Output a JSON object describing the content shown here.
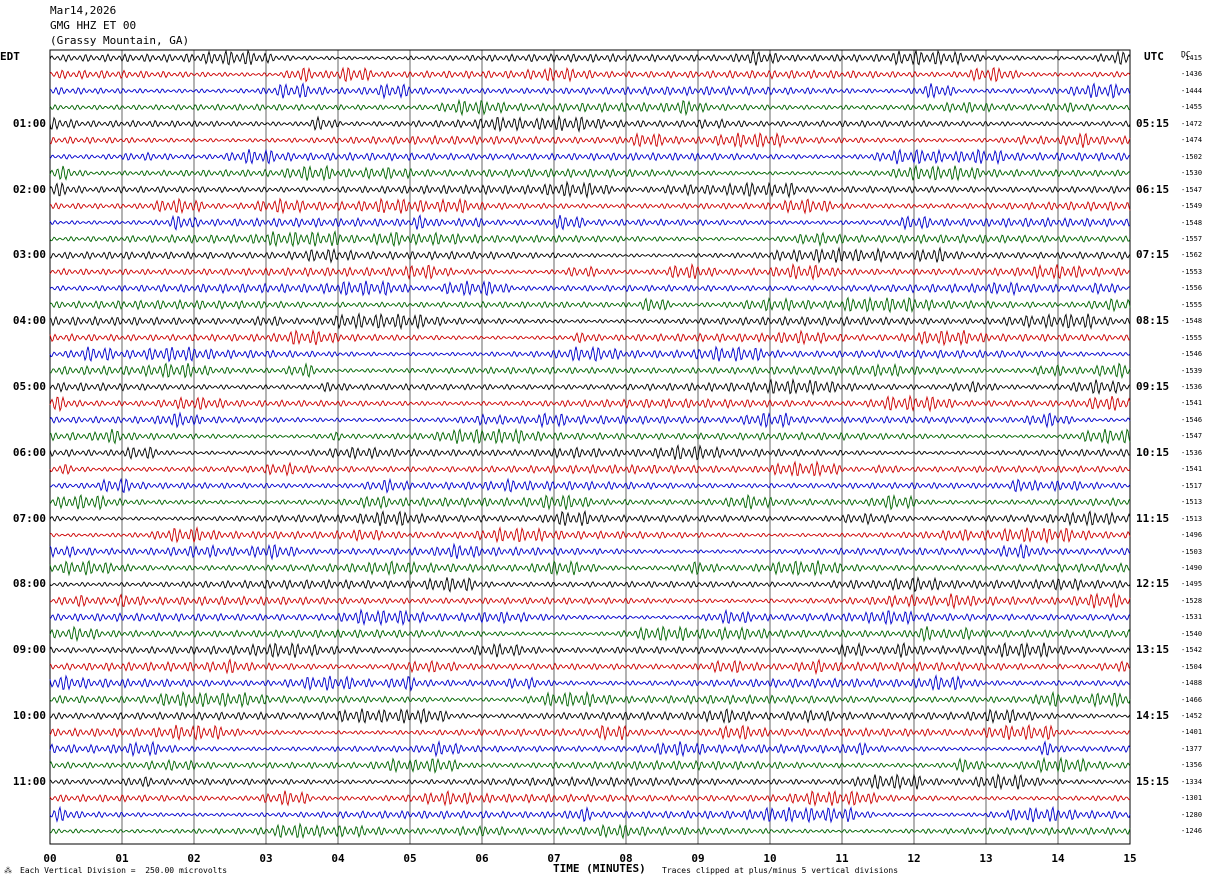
{
  "header": {
    "date": "Mar14,2026",
    "station": "GMG HHZ ET 00",
    "location": "(Grassy Mountain, GA)"
  },
  "labels": {
    "left_tz": "EDT",
    "right_tz": "UTC",
    "dc_header": "DC"
  },
  "footer": {
    "scale_note": "Each Vertical Division =  250.00 microvolts",
    "x_title": "TIME (MINUTES)",
    "clip_note": "Traces clipped at plus/minus 5 vertical divisions"
  },
  "chart_data": {
    "type": "line",
    "title": "Mar14,2026 GMG HHZ ET 00 (Grassy Mountain, GA)",
    "xlabel": "TIME (MINUTES)",
    "xlim": [
      0,
      15
    ],
    "x_ticks": [
      "00",
      "01",
      "02",
      "03",
      "04",
      "05",
      "06",
      "07",
      "08",
      "09",
      "10",
      "11",
      "12",
      "13",
      "14",
      "15"
    ],
    "grid": "vertical lines at each minute",
    "trace_colors": [
      "#000000",
      "#cc0000",
      "#0000cc",
      "#006400"
    ],
    "left_time_labels": [
      "01:00",
      "02:00",
      "03:00",
      "04:00",
      "05:00",
      "06:00",
      "07:00",
      "08:00",
      "09:00",
      "10:00",
      "11:00"
    ],
    "right_time_labels": [
      "05:15",
      "06:15",
      "07:15",
      "08:15",
      "09:15",
      "10:15",
      "11:15",
      "12:15",
      "13:15",
      "14:15",
      "15:15"
    ],
    "dc_offsets": [
      "-1415",
      "-1436",
      "-1444",
      "-1455",
      "-1472",
      "-1474",
      "-1502",
      "-1530",
      "-1547",
      "-1549",
      "-1548",
      "-1557",
      "-1562",
      "-1553",
      "-1556",
      "-1555",
      "-1548",
      "-1555",
      "-1546",
      "-1539",
      "-1536",
      "-1541",
      "-1546",
      "-1547",
      "-1536",
      "-1541",
      "-1517",
      "-1513",
      "-1513",
      "-1496",
      "-1503",
      "-1490",
      "-1495",
      "-1528",
      "-1531",
      "-1540",
      "-1542",
      "-1504",
      "-1488",
      "-1466",
      "-1452",
      "-1401",
      "-1377",
      "-1356",
      "-1334",
      "-1301",
      "-1280",
      "-1246"
    ]
  }
}
